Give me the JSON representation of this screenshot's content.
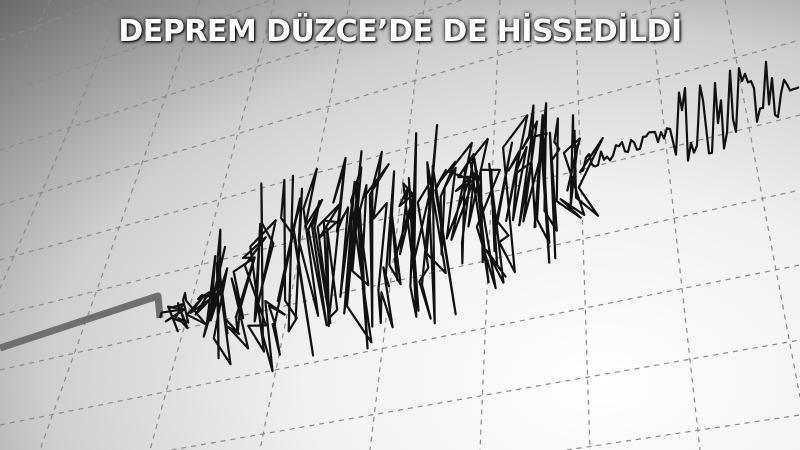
{
  "headline": "DEPREM DÜZCE’DE DE HİSSEDİLDİ",
  "colors": {
    "trace": "#111111",
    "grid": "#8a8a8a",
    "stylus": "#707070",
    "headline": "#ffffff"
  }
}
